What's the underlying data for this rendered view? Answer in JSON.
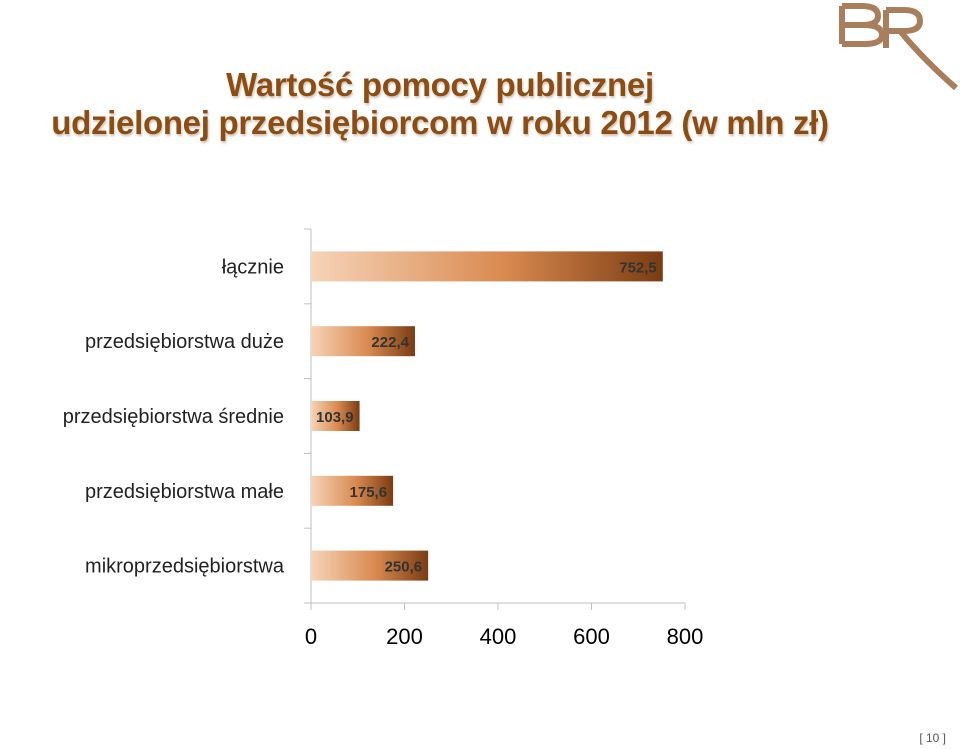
{
  "title": {
    "line1": "Wartość pomocy publicznej",
    "line2": "udzielonej przedsiębiorcom w roku 2012 (w mln zł)"
  },
  "logo": {
    "text": "BR"
  },
  "colors": {
    "title": "#8b4d14",
    "bar_light": "#f6d4b8",
    "bar_mid": "#d98a50",
    "bar_dark": "#7a3c12",
    "logo": "#a97e5c"
  },
  "chart_data": {
    "type": "bar",
    "orientation": "horizontal",
    "categories": [
      "łącznie",
      "przedsiębiorstwa duże",
      "przedsiębiorstwa średnie",
      "przedsiębiorstwa małe",
      "mikroprzedsiębiorstwa"
    ],
    "values": [
      752.5,
      222.4,
      103.9,
      175.6,
      250.6
    ],
    "value_labels": [
      "752,5",
      "222,4",
      "103,9",
      "175,6",
      "250,6"
    ],
    "x_ticks": [
      "0",
      "200",
      "400",
      "600",
      "800"
    ],
    "xlim": [
      0,
      800
    ],
    "grid": false,
    "legend": "none"
  },
  "page_number": "[ 10 ]"
}
